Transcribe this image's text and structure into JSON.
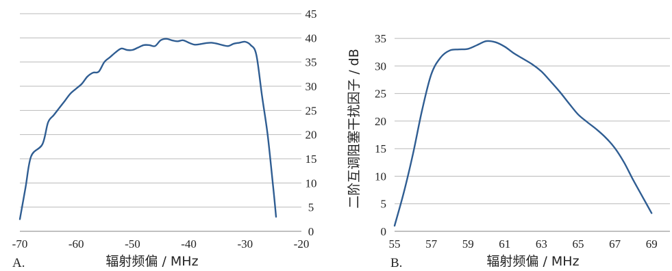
{
  "chart_data": [
    {
      "type": "line",
      "panel_label": "A.",
      "xlabel": "辐射频偏 / MHz",
      "ylabel": "",
      "xlim": [
        -70,
        -20
      ],
      "ylim": [
        0,
        45
      ],
      "x_ticks": [
        "-70",
        "-60",
        "-50",
        "-40",
        "-30",
        "-20"
      ],
      "y_ticks": [
        "0",
        "5",
        "10",
        "15",
        "20",
        "25",
        "30",
        "35",
        "40",
        "45"
      ],
      "y_axis_side": "right",
      "grid": true,
      "color": "#2f5d92",
      "x": [
        -70,
        -69,
        -68,
        -66,
        -65,
        -64,
        -63,
        -62,
        -61,
        -60,
        -59,
        -58,
        -57,
        -56,
        -55,
        -54,
        -53,
        -52,
        -51,
        -50,
        -49,
        -48,
        -47,
        -46,
        -45,
        -44,
        -43,
        -42,
        -41,
        -40,
        -39,
        -38,
        -37,
        -36,
        -35,
        -34,
        -33,
        -32,
        -31,
        -30,
        -29,
        -28,
        -27,
        -26,
        -25,
        -24.5
      ],
      "y": [
        2.5,
        9,
        15.5,
        18,
        22.5,
        24,
        25.5,
        27,
        28.5,
        29.5,
        30.5,
        32,
        32.8,
        33,
        35,
        36,
        37,
        37.8,
        37.5,
        37.5,
        38,
        38.5,
        38.5,
        38.3,
        39.5,
        39.8,
        39.5,
        39.3,
        39.5,
        39,
        38.6,
        38.7,
        38.9,
        39,
        38.8,
        38.5,
        38.3,
        38.8,
        39,
        39.2,
        38.5,
        36.5,
        28,
        20,
        9,
        3
      ]
    },
    {
      "type": "line",
      "panel_label": "B.",
      "xlabel": "辐射频偏 / MHz",
      "ylabel": "二阶互调阻塞干扰因子 / dB",
      "xlim": [
        55,
        70
      ],
      "ylim": [
        0,
        37
      ],
      "x_ticks": [
        "55",
        "57",
        "59",
        "61",
        "63",
        "65",
        "67",
        "69"
      ],
      "y_ticks": [
        "0",
        "5",
        "10",
        "15",
        "20",
        "25",
        "30",
        "35"
      ],
      "y_axis_side": "left",
      "grid": true,
      "color": "#2f5d92",
      "x": [
        55,
        55.5,
        56,
        56.5,
        57,
        57.5,
        58,
        58.5,
        59,
        59.5,
        60,
        60.5,
        61,
        61.5,
        62,
        62.5,
        63,
        63.5,
        64,
        64.5,
        65,
        65.5,
        66,
        66.5,
        67,
        67.5,
        68,
        68.5,
        69
      ],
      "y": [
        1,
        7,
        14,
        22,
        28.5,
        31.5,
        32.8,
        33,
        33.1,
        33.8,
        34.5,
        34.3,
        33.5,
        32.3,
        31.3,
        30.3,
        29,
        27.2,
        25.3,
        23.2,
        21.2,
        19.8,
        18.5,
        17,
        15.1,
        12.5,
        9.3,
        6.3,
        3.3
      ]
    }
  ]
}
